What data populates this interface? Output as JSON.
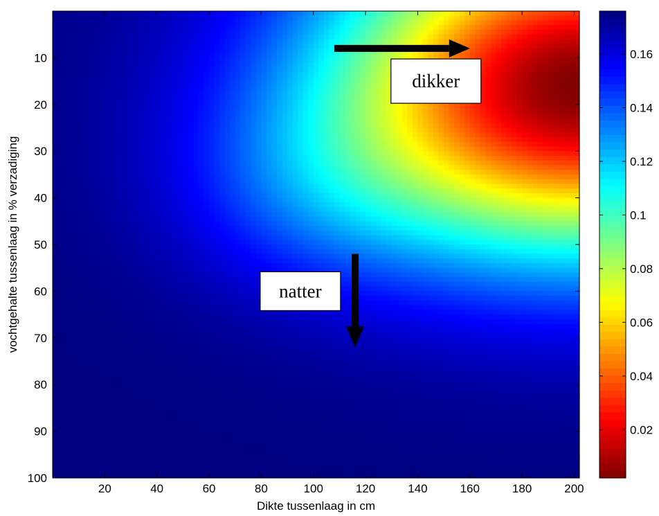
{
  "chart_data": {
    "type": "heatmap",
    "title": "",
    "xlabel": "Dikte tussenlaag in cm",
    "ylabel": "vochtgehalte tussenlaag in % verzadiging",
    "xlim": [
      0,
      202
    ],
    "ylim": [
      100,
      0
    ],
    "y_axis_reversed": true,
    "x_ticks": [
      20,
      40,
      60,
      80,
      100,
      120,
      140,
      160,
      180,
      200
    ],
    "y_ticks": [
      10,
      20,
      30,
      40,
      50,
      60,
      70,
      80,
      90,
      100
    ],
    "colormap": "jet",
    "colormap_reversed": true,
    "colorbar": {
      "range": [
        0.002,
        0.176
      ],
      "ticks": [
        0.02,
        0.04,
        0.06,
        0.08,
        0.1,
        0.12,
        0.14,
        0.16
      ],
      "tick_labels": [
        "0.02",
        "0.04",
        "0.06",
        "0.08",
        "0.1",
        "0.12",
        "0.14",
        "0.16"
      ],
      "placement": "right"
    },
    "grid": false,
    "approx_values": [
      {
        "x": 200,
        "y": 15,
        "value": 0.002
      },
      {
        "x": 180,
        "y": 25,
        "value": 0.02
      },
      {
        "x": 150,
        "y": 35,
        "value": 0.06
      },
      {
        "x": 130,
        "y": 30,
        "value": 0.08
      },
      {
        "x": 100,
        "y": 50,
        "value": 0.12
      },
      {
        "x": 200,
        "y": 60,
        "value": 0.12
      },
      {
        "x": 100,
        "y": 80,
        "value": 0.15
      },
      {
        "x": 5,
        "y": 50,
        "value": 0.176
      },
      {
        "x": 200,
        "y": 100,
        "value": 0.175
      }
    ],
    "annotations": [
      {
        "text": "dikker",
        "arrow": {
          "direction": "right",
          "from": [
            108,
            8
          ],
          "to": [
            160,
            8
          ]
        },
        "box_at": [
          147,
          15
        ]
      },
      {
        "text": "natter",
        "arrow": {
          "direction": "down",
          "from": [
            116,
            52
          ],
          "to": [
            116,
            72
          ]
        },
        "box_at": [
          95,
          60
        ]
      }
    ]
  }
}
